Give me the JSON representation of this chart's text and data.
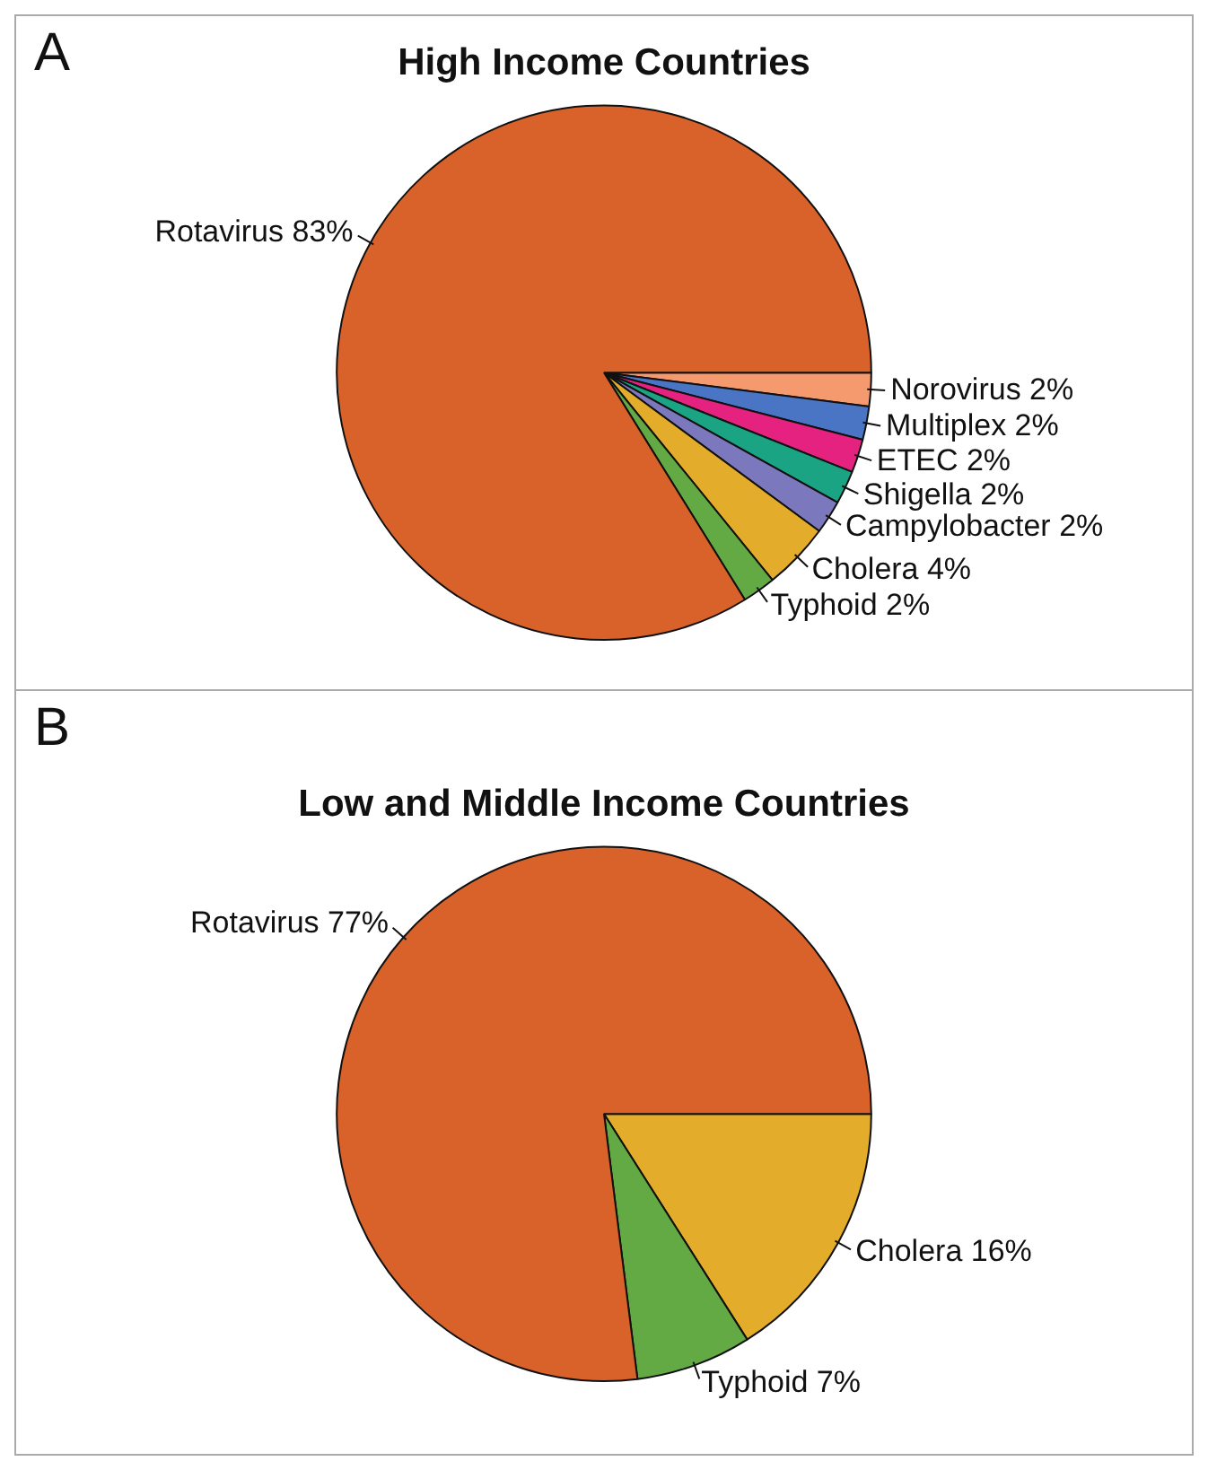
{
  "chart_data": [
    {
      "type": "pie",
      "title": "High Income Countries",
      "annotations": [
        "A"
      ],
      "categories": [
        "Norovirus",
        "Multiplex",
        "ETEC",
        "Shigella",
        "Campylobacter",
        "Cholera",
        "Typhoid",
        "Rotavirus"
      ],
      "values": [
        2,
        2,
        2,
        2,
        2,
        4,
        2,
        83
      ],
      "value_labels": [
        "2%",
        "2%",
        "2%",
        "2%",
        "2%",
        "4%",
        "2%",
        "83%"
      ],
      "colors": [
        "#f59a6e",
        "#4a74c4",
        "#e5227f",
        "#1aa483",
        "#7c78bd",
        "#e3ac2b",
        "#63a944",
        "#d9622b"
      ]
    },
    {
      "type": "pie",
      "title": "Low and Middle Income Countries",
      "annotations": [
        "B"
      ],
      "categories": [
        "Cholera",
        "Typhoid",
        "Rotavirus"
      ],
      "values": [
        16,
        7,
        77
      ],
      "value_labels": [
        "16%",
        "7%",
        "77%"
      ],
      "colors": [
        "#e3ac2b",
        "#63a944",
        "#d9622b"
      ]
    }
  ]
}
